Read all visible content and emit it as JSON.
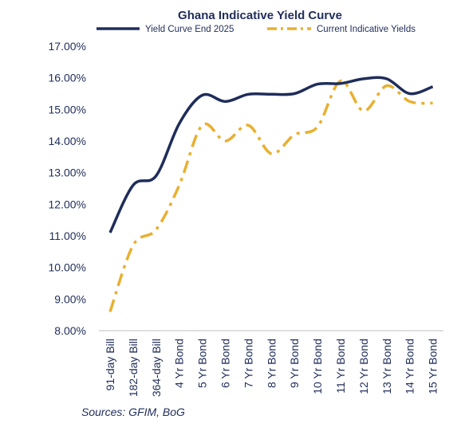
{
  "chart_data": {
    "type": "line",
    "title": "Ghana Indicative Yield Curve",
    "categories": [
      "91-day Bill",
      "182-day Bill",
      "364-day Bill",
      "4 Yr Bond",
      "5 Yr Bond",
      "6 Yr Bond",
      "7 Yr Bond",
      "8 Yr Bond",
      "9 Yr Bond",
      "10 Yr Bond",
      "11 Yr Bond",
      "12 Yr Bond",
      "13 Yr Bond",
      "14 Yr Bond",
      "15 Yr Bond"
    ],
    "y_ticks": [
      "8.00%",
      "9.00%",
      "10.00%",
      "11.00%",
      "12.00%",
      "13.00%",
      "14.00%",
      "15.00%",
      "16.00%",
      "17.00%"
    ],
    "ylim": [
      8,
      17
    ],
    "y_unit": "%",
    "grid": false,
    "legend_position": "top",
    "series": [
      {
        "name": "Yield Curve End 2025",
        "color": "#1f2d5a",
        "style": "solid",
        "values": [
          11.1,
          12.6,
          12.9,
          14.55,
          15.45,
          15.25,
          15.48,
          15.48,
          15.5,
          15.8,
          15.82,
          15.97,
          15.97,
          15.5,
          15.72
        ]
      },
      {
        "name": "Current Indicative Yields",
        "color": "#e8b030",
        "style": "dash-dot",
        "values": [
          8.6,
          10.7,
          11.2,
          12.6,
          14.5,
          14.0,
          14.5,
          13.6,
          14.2,
          14.45,
          15.9,
          14.95,
          15.75,
          15.25,
          15.2
        ]
      }
    ]
  },
  "footer": {
    "source": "Sources: GFIM, BoG"
  }
}
